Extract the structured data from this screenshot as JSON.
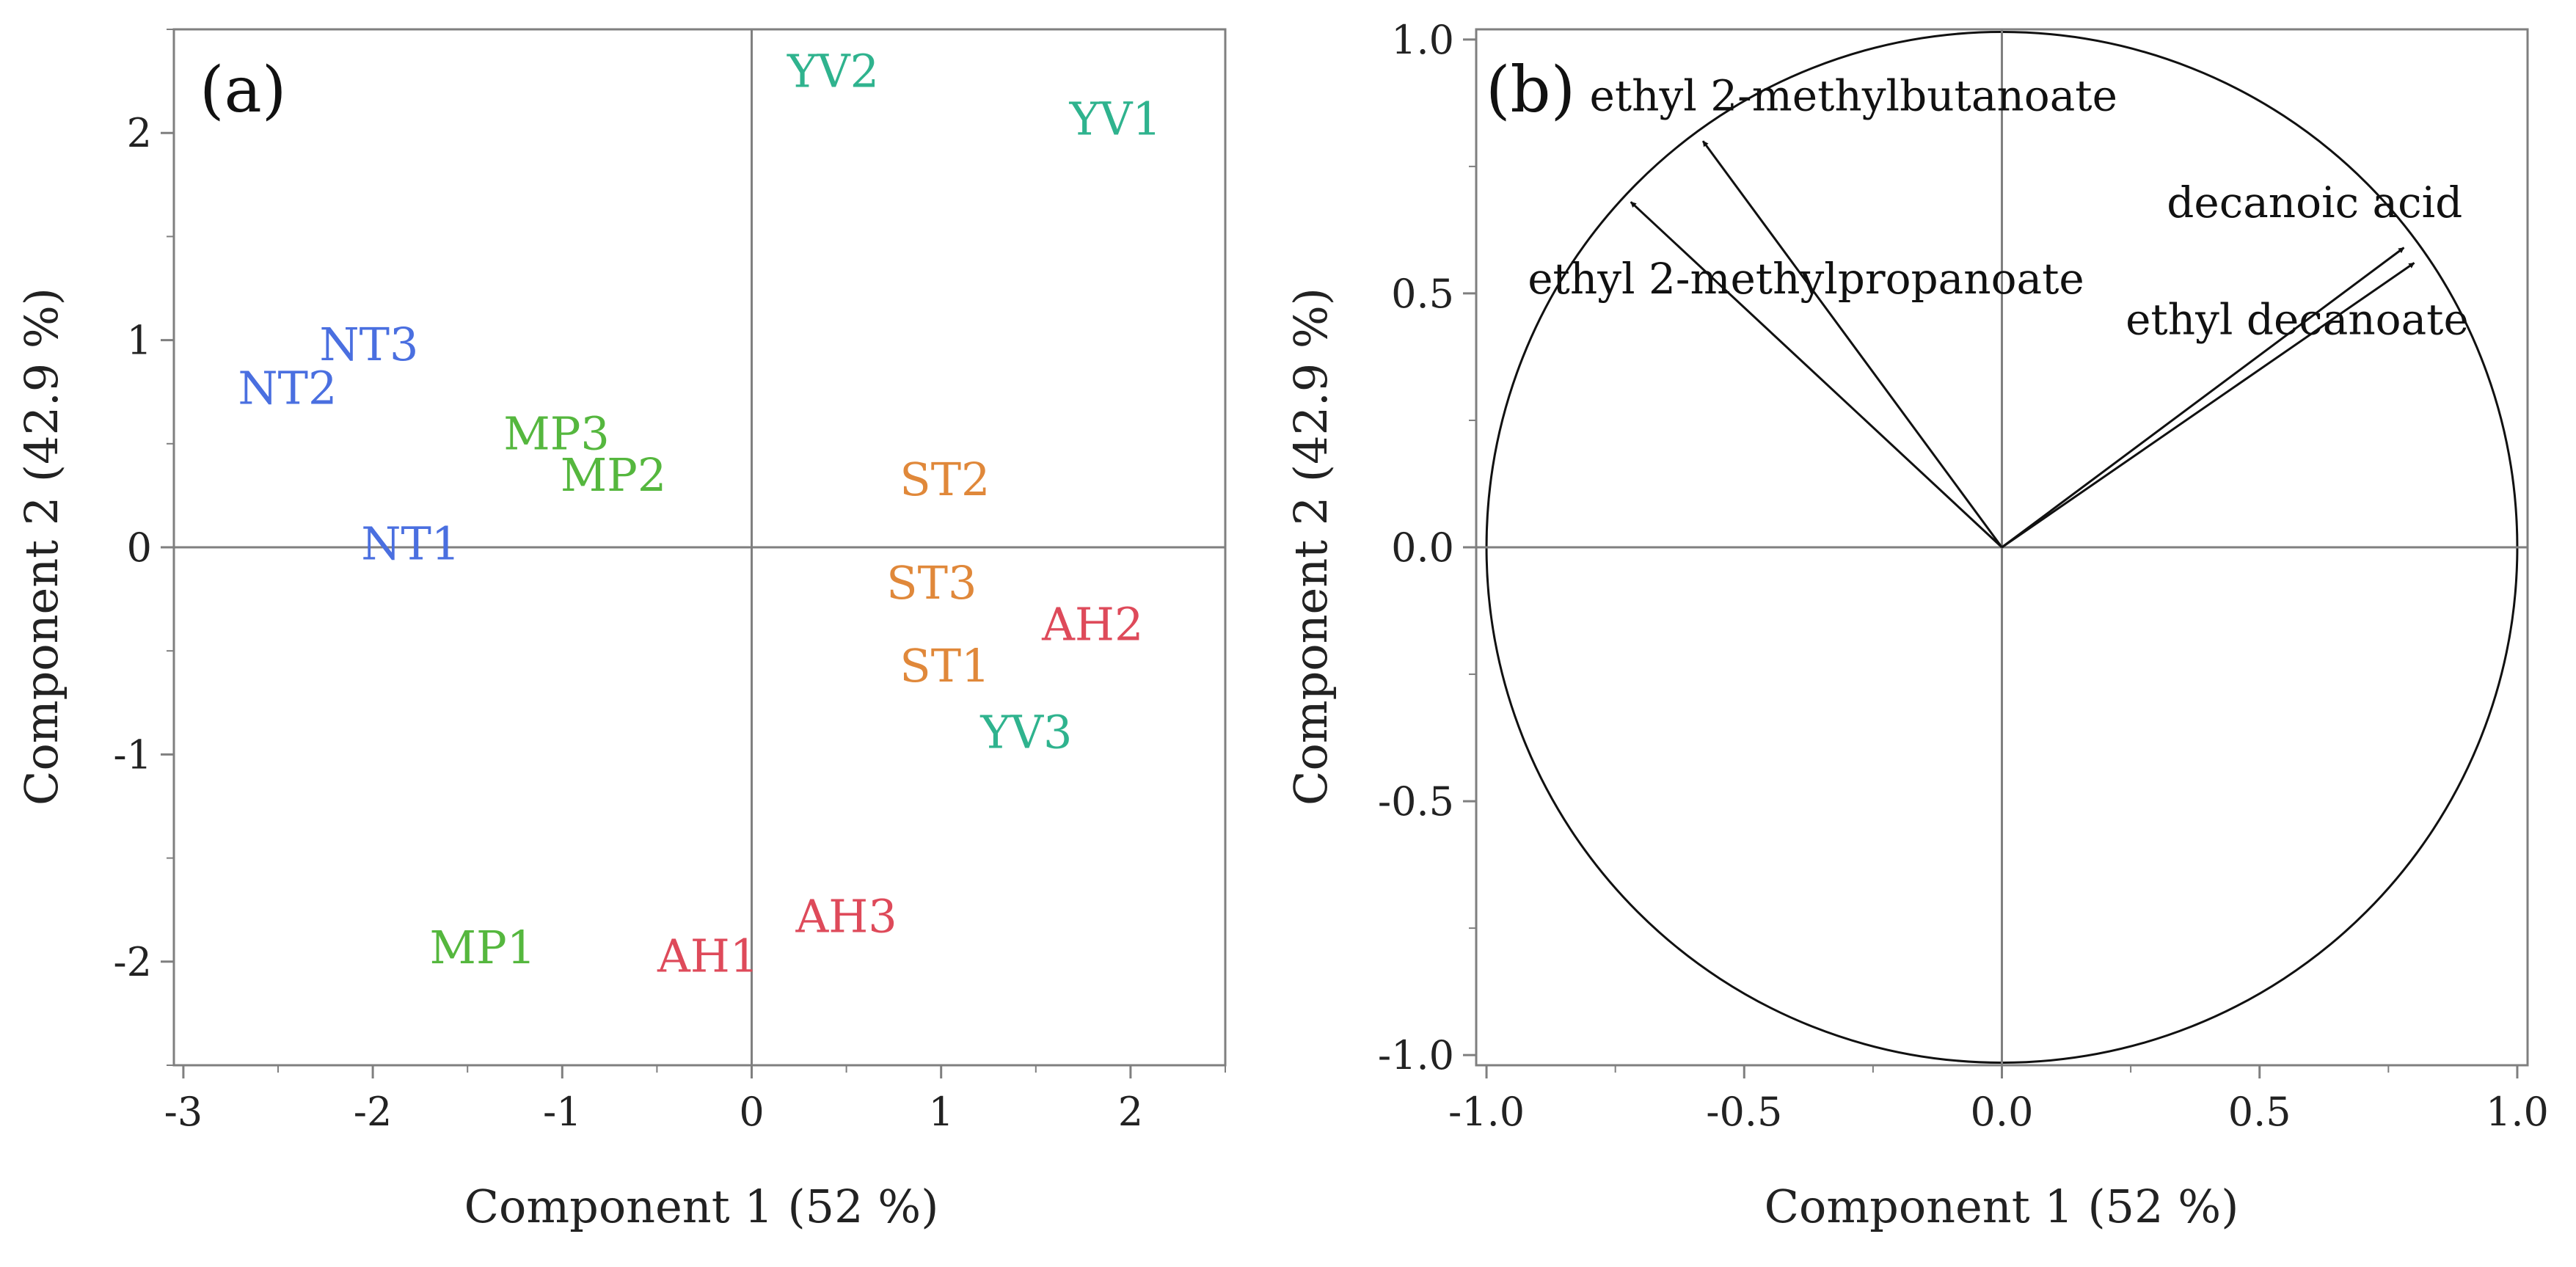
{
  "chart_data": [
    {
      "type": "scatter",
      "panel_label": "(a)",
      "xlabel": "Component 1  (52 %)",
      "ylabel": "Component 2  (42.9 %)",
      "xlim": [
        -3.05,
        2.5
      ],
      "ylim": [
        -2.5,
        2.5
      ],
      "xticks": [
        -3,
        -2,
        -1,
        0,
        1,
        2
      ],
      "yticks": [
        -2,
        -1,
        0,
        1,
        2
      ],
      "xtick_labels": [
        "-3",
        "-2",
        "-1",
        "0",
        "1",
        "2"
      ],
      "ytick_labels": [
        "-2",
        "-1",
        "0",
        "1",
        "2"
      ],
      "reference_lines": {
        "x": 0,
        "y": 0
      },
      "points": [
        {
          "label": "YV2",
          "x": 0.43,
          "y": 2.3,
          "color": "#2fb38e"
        },
        {
          "label": "YV1",
          "x": 1.92,
          "y": 2.07,
          "color": "#2fb38e"
        },
        {
          "label": "NT3",
          "x": -2.02,
          "y": 0.98,
          "color": "#4a6fe0"
        },
        {
          "label": "NT2",
          "x": -2.45,
          "y": 0.77,
          "color": "#4a6fe0"
        },
        {
          "label": "MP3",
          "x": -1.03,
          "y": 0.55,
          "color": "#55b73e"
        },
        {
          "label": "MP2",
          "x": -0.73,
          "y": 0.35,
          "color": "#55b73e"
        },
        {
          "label": "ST2",
          "x": 1.02,
          "y": 0.33,
          "color": "#e0883a"
        },
        {
          "label": "NT1",
          "x": -1.8,
          "y": 0.02,
          "color": "#4a6fe0"
        },
        {
          "label": "ST3",
          "x": 0.95,
          "y": -0.17,
          "color": "#e0883a"
        },
        {
          "label": "AH2",
          "x": 1.8,
          "y": -0.37,
          "color": "#de4a5a"
        },
        {
          "label": "ST1",
          "x": 1.02,
          "y": -0.57,
          "color": "#e0883a"
        },
        {
          "label": "YV3",
          "x": 1.45,
          "y": -0.89,
          "color": "#2fb38e"
        },
        {
          "label": "AH3",
          "x": 0.5,
          "y": -1.78,
          "color": "#de4a5a"
        },
        {
          "label": "MP1",
          "x": -1.42,
          "y": -1.93,
          "color": "#55b73e"
        },
        {
          "label": "AH1",
          "x": -0.23,
          "y": -1.97,
          "color": "#de4a5a"
        }
      ]
    },
    {
      "type": "scatter",
      "subtype": "loading-vectors",
      "panel_label": "(b)",
      "xlabel": "Component 1  (52 %)",
      "ylabel": "Component 2  (42.9 %)",
      "xlim": [
        -1.02,
        1.02
      ],
      "ylim": [
        -1.02,
        1.02
      ],
      "xticks": [
        -1.0,
        -0.5,
        0.0,
        0.5,
        1.0
      ],
      "yticks": [
        -1.0,
        -0.5,
        0.0,
        0.5,
        1.0
      ],
      "xtick_labels": [
        "-1.0",
        "-0.5",
        "0.0",
        "0.5",
        "1.0"
      ],
      "ytick_labels": [
        "-1.0",
        "-0.5",
        "0.0",
        "0.5",
        "1.0"
      ],
      "unit_circle": true,
      "reference_lines": {
        "x": 0,
        "y": 0
      },
      "vectors": [
        {
          "label": "ethyl 2-methylbutanoate",
          "x": -0.58,
          "y": 0.8,
          "label_x": -0.8,
          "label_y": 0.86
        },
        {
          "label": "ethyl 2-methylpropanoate",
          "x": -0.72,
          "y": 0.68,
          "label_x": -0.92,
          "label_y": 0.5
        },
        {
          "label": "decanoic acid",
          "x": 0.78,
          "y": 0.59,
          "label_x": 0.32,
          "label_y": 0.65
        },
        {
          "label": "ethyl decanoate",
          "x": 0.8,
          "y": 0.56,
          "label_x": 0.24,
          "label_y": 0.42
        }
      ]
    }
  ]
}
